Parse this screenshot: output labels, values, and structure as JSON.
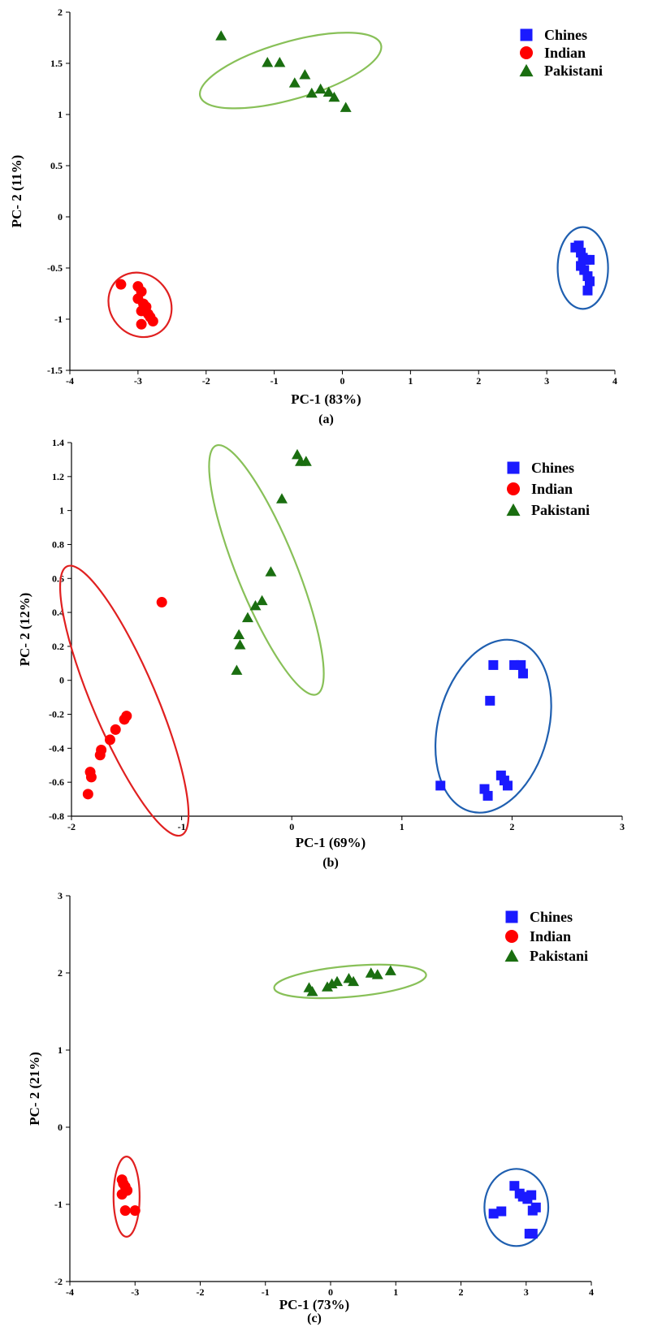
{
  "chart_data": [
    {
      "type": "scatter",
      "panel_label": "(a)",
      "xlabel": "PC-1 (83%)",
      "ylabel": "PC- 2 (11%)",
      "xlim": [
        -4,
        4
      ],
      "ylim": [
        -1.5,
        2
      ],
      "xticks": [
        -4,
        -3,
        -2,
        -1,
        0,
        1,
        2,
        3,
        4
      ],
      "yticks": [
        -1.5,
        -1,
        -0.5,
        0,
        0.5,
        1,
        1.5,
        2
      ],
      "grid": false,
      "legend": "top-right",
      "series": [
        {
          "name": "Chines",
          "marker": "square",
          "color": "#1a1aff",
          "ellipse_color": "#1f5fb0",
          "points": [
            [
              3.42,
              -0.3
            ],
            [
              3.47,
              -0.28
            ],
            [
              3.5,
              -0.35
            ],
            [
              3.53,
              -0.4
            ],
            [
              3.58,
              -0.42
            ],
            [
              3.63,
              -0.42
            ],
            [
              3.5,
              -0.48
            ],
            [
              3.55,
              -0.52
            ],
            [
              3.6,
              -0.58
            ],
            [
              3.63,
              -0.63
            ],
            [
              3.6,
              -0.72
            ]
          ],
          "ellipse": {
            "cx": 3.53,
            "cy": -0.5,
            "rx": 0.37,
            "ry": 0.4,
            "rotation": 0
          }
        },
        {
          "name": "Indian",
          "marker": "circle",
          "color": "#ff0000",
          "ellipse_color": "#e02020",
          "points": [
            [
              -3.25,
              -0.66
            ],
            [
              -3.0,
              -0.68
            ],
            [
              -2.95,
              -0.73
            ],
            [
              -3.0,
              -0.8
            ],
            [
              -2.92,
              -0.85
            ],
            [
              -2.88,
              -0.88
            ],
            [
              -2.95,
              -0.92
            ],
            [
              -2.85,
              -0.95
            ],
            [
              -2.82,
              -0.98
            ],
            [
              -2.78,
              -1.02
            ],
            [
              -2.95,
              -1.05
            ]
          ],
          "ellipse": {
            "cx": -2.97,
            "cy": -0.86,
            "rx": 0.44,
            "ry": 0.33,
            "rotation": 40
          }
        },
        {
          "name": "Pakistani",
          "marker": "triangle",
          "color": "#1a6e10",
          "ellipse_color": "#88c058",
          "points": [
            [
              -1.78,
              1.77
            ],
            [
              -1.1,
              1.51
            ],
            [
              -0.92,
              1.51
            ],
            [
              -0.55,
              1.39
            ],
            [
              -0.7,
              1.31
            ],
            [
              -0.32,
              1.25
            ],
            [
              -0.45,
              1.21
            ],
            [
              -0.2,
              1.22
            ],
            [
              -0.12,
              1.17
            ],
            [
              0.05,
              1.07
            ]
          ],
          "ellipse": {
            "cx": -0.76,
            "cy": 1.43,
            "rx": 1.38,
            "ry": 0.28,
            "rotation": 16
          }
        }
      ]
    },
    {
      "type": "scatter",
      "panel_label": "(b)",
      "xlabel": "PC-1 (69%)",
      "ylabel": "PC- 2 (12%)",
      "xlim": [
        -2,
        3
      ],
      "ylim": [
        -0.8,
        1.4
      ],
      "xticks": [
        -2,
        -1,
        0,
        1,
        2,
        3
      ],
      "yticks": [
        -0.8,
        -0.6,
        -0.4,
        -0.2,
        0,
        0.2,
        0.4,
        0.6,
        0.8,
        1,
        1.2,
        1.4
      ],
      "grid": false,
      "legend": "top-right",
      "series": [
        {
          "name": "Chines",
          "marker": "square",
          "color": "#1a1aff",
          "ellipse_color": "#1f5fb0",
          "points": [
            [
              1.83,
              0.09
            ],
            [
              2.02,
              0.09
            ],
            [
              2.08,
              0.09
            ],
            [
              2.1,
              0.04
            ],
            [
              1.8,
              -0.12
            ],
            [
              1.35,
              -0.62
            ],
            [
              1.75,
              -0.64
            ],
            [
              1.78,
              -0.68
            ],
            [
              1.9,
              -0.56
            ],
            [
              1.93,
              -0.59
            ],
            [
              1.96,
              -0.62
            ]
          ],
          "ellipse": {
            "cx": 1.83,
            "cy": -0.27,
            "rx": 0.5,
            "ry": 0.52,
            "rotation": -15
          }
        },
        {
          "name": "Indian",
          "marker": "circle",
          "color": "#ff0000",
          "ellipse_color": "#e02020",
          "points": [
            [
              -1.18,
              0.46
            ],
            [
              -1.5,
              -0.21
            ],
            [
              -1.52,
              -0.23
            ],
            [
              -1.6,
              -0.29
            ],
            [
              -1.65,
              -0.35
            ],
            [
              -1.73,
              -0.41
            ],
            [
              -1.74,
              -0.44
            ],
            [
              -1.83,
              -0.54
            ],
            [
              -1.82,
              -0.57
            ],
            [
              -1.85,
              -0.67
            ]
          ],
          "ellipse": {
            "cx": -1.52,
            "cy": -0.12,
            "rx": 0.29,
            "ry": 0.86,
            "rotation": 23
          }
        },
        {
          "name": "Pakistani",
          "marker": "triangle",
          "color": "#1a6e10",
          "ellipse_color": "#88c058",
          "points": [
            [
              0.05,
              1.33
            ],
            [
              0.08,
              1.29
            ],
            [
              0.13,
              1.29
            ],
            [
              -0.09,
              1.07
            ],
            [
              -0.19,
              0.64
            ],
            [
              -0.27,
              0.47
            ],
            [
              -0.33,
              0.44
            ],
            [
              -0.4,
              0.37
            ],
            [
              -0.48,
              0.27
            ],
            [
              -0.47,
              0.21
            ],
            [
              -0.5,
              0.06
            ]
          ],
          "ellipse": {
            "cx": -0.23,
            "cy": 0.65,
            "rx": 0.27,
            "ry": 0.79,
            "rotation": 22
          }
        }
      ]
    },
    {
      "type": "scatter",
      "panel_label": "(c)",
      "xlabel": "PC-1 (73%)",
      "ylabel": "PC- 2 (21%)",
      "xlim": [
        -4,
        4
      ],
      "ylim": [
        -2,
        3
      ],
      "xticks": [
        -4,
        -3,
        -2,
        -1,
        0,
        1,
        2,
        3,
        4
      ],
      "yticks": [
        -2,
        -1,
        0,
        1,
        2,
        3
      ],
      "grid": false,
      "legend": "top-right",
      "series": [
        {
          "name": "Chines",
          "marker": "square",
          "color": "#1a1aff",
          "ellipse_color": "#1f5fb0",
          "points": [
            [
              2.5,
              -1.12
            ],
            [
              2.62,
              -1.09
            ],
            [
              2.82,
              -0.76
            ],
            [
              2.9,
              -0.86
            ],
            [
              2.95,
              -0.9
            ],
            [
              3.02,
              -0.93
            ],
            [
              3.08,
              -0.88
            ],
            [
              3.15,
              -1.04
            ],
            [
              3.1,
              -1.08
            ],
            [
              3.05,
              -1.38
            ],
            [
              3.1,
              -1.38
            ]
          ],
          "ellipse": {
            "cx": 2.85,
            "cy": -1.04,
            "rx": 0.49,
            "ry": 0.5,
            "rotation": 0
          }
        },
        {
          "name": "Indian",
          "marker": "circle",
          "color": "#ff0000",
          "ellipse_color": "#e02020",
          "points": [
            [
              -3.2,
              -0.68
            ],
            [
              -3.18,
              -0.73
            ],
            [
              -3.15,
              -0.77
            ],
            [
              -3.12,
              -0.82
            ],
            [
              -3.2,
              -0.87
            ],
            [
              -3.15,
              -1.08
            ],
            [
              -3.0,
              -1.08
            ]
          ],
          "ellipse": {
            "cx": -3.13,
            "cy": -0.9,
            "rx": 0.2,
            "ry": 0.52,
            "rotation": 0
          }
        },
        {
          "name": "Pakistani",
          "marker": "triangle",
          "color": "#1a6e10",
          "ellipse_color": "#88c058",
          "points": [
            [
              -0.33,
              1.81
            ],
            [
              -0.28,
              1.76
            ],
            [
              -0.05,
              1.82
            ],
            [
              0.02,
              1.86
            ],
            [
              0.1,
              1.89
            ],
            [
              0.28,
              1.93
            ],
            [
              0.35,
              1.89
            ],
            [
              0.62,
              2.0
            ],
            [
              0.72,
              1.98
            ],
            [
              0.92,
              2.03
            ]
          ],
          "ellipse": {
            "cx": 0.3,
            "cy": 1.89,
            "rx": 1.17,
            "ry": 0.2,
            "rotation": 5
          }
        }
      ]
    }
  ]
}
